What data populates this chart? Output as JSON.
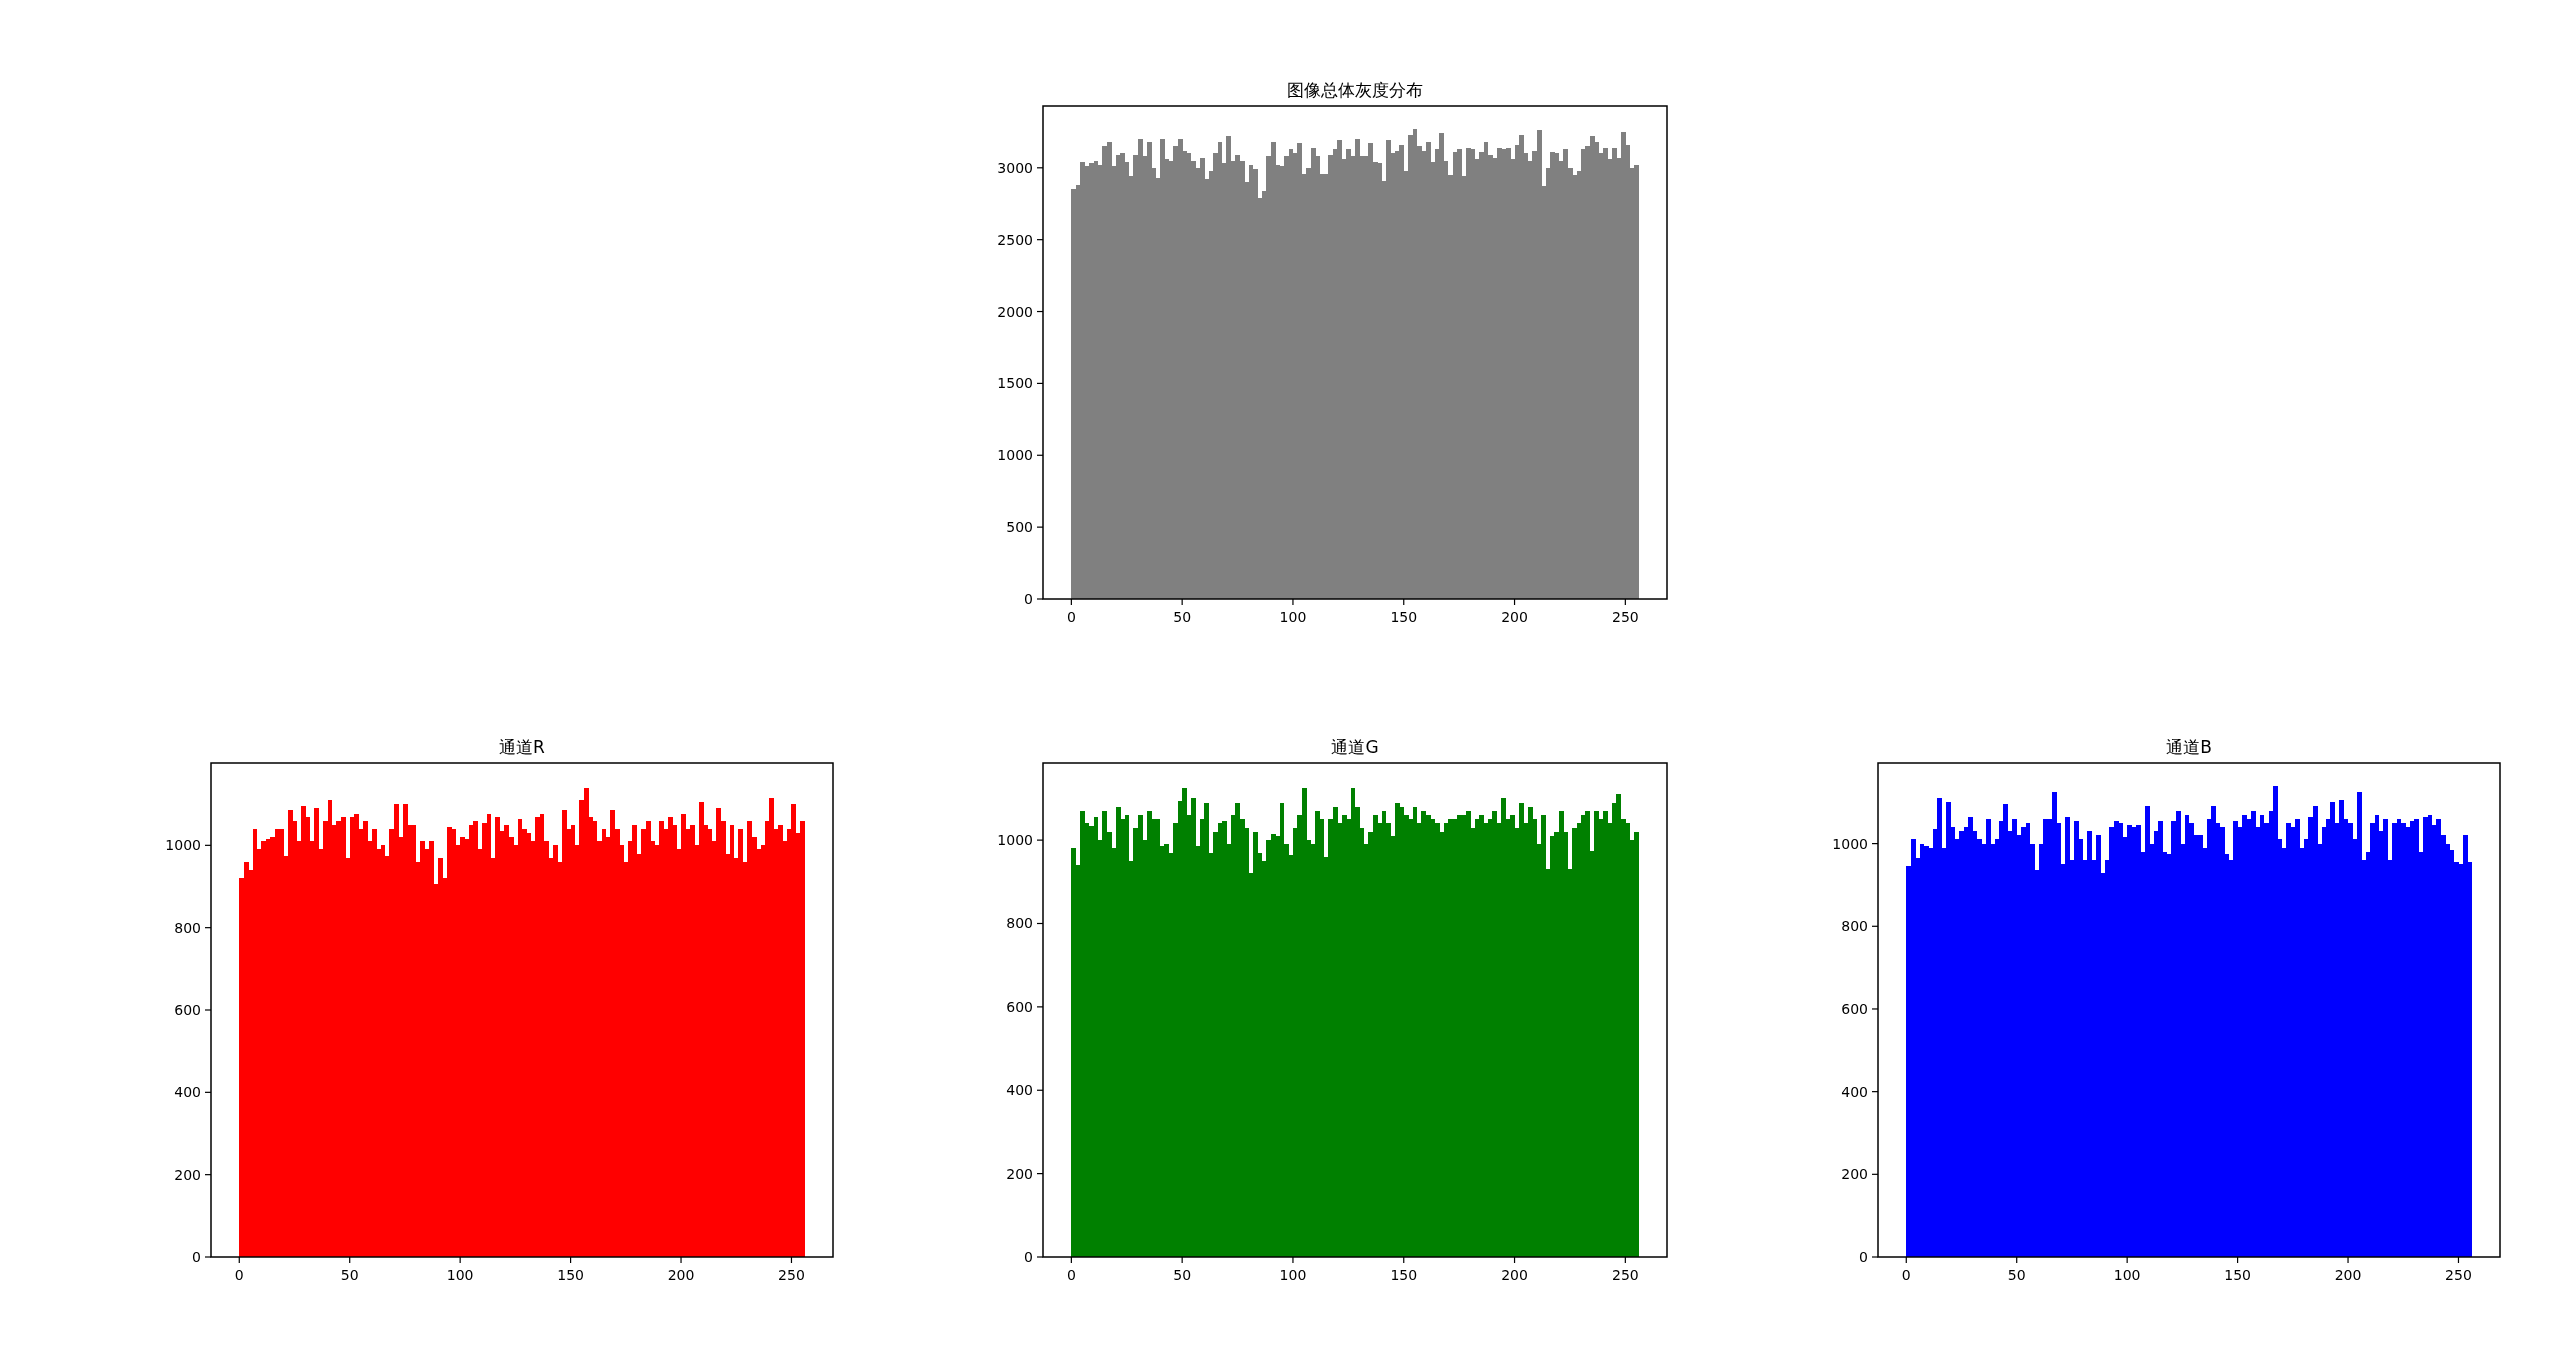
{
  "chart_data": [
    {
      "type": "histogram",
      "title": "图像总体灰度分布",
      "color": "#808080",
      "xlim": [
        -12.8,
        268.8
      ],
      "ylim": [
        0,
        3430
      ],
      "xticks": [
        0,
        50,
        100,
        150,
        200,
        250
      ],
      "yticks": [
        0,
        500,
        1000,
        1500,
        2000,
        2500,
        3000
      ],
      "bins": [
        0,
        2,
        4,
        6,
        8,
        10,
        12,
        14,
        16,
        18,
        20,
        22,
        24,
        26,
        28,
        30,
        32,
        34,
        36,
        38,
        40,
        42,
        44,
        46,
        48,
        50,
        52,
        54,
        56,
        58,
        60,
        62,
        64,
        66,
        68,
        70,
        72,
        74,
        76,
        78,
        80,
        82,
        84,
        86,
        88,
        90,
        92,
        94,
        96,
        98,
        100,
        102,
        104,
        106,
        108,
        110,
        112,
        114,
        116,
        118,
        120,
        122,
        124,
        126,
        128,
        130,
        132,
        134,
        136,
        138,
        140,
        142,
        144,
        146,
        148,
        150,
        152,
        154,
        156,
        158,
        160,
        162,
        164,
        166,
        168,
        170,
        172,
        174,
        176,
        178,
        180,
        182,
        184,
        186,
        188,
        190,
        192,
        194,
        196,
        198,
        200,
        202,
        204,
        206,
        208,
        210,
        212,
        214,
        216,
        218,
        220,
        222,
        224,
        226,
        228,
        230,
        232,
        234,
        236,
        238,
        240,
        242,
        244,
        246,
        248,
        250,
        252,
        254,
        256
      ],
      "values": [
        2850,
        2880,
        3040,
        3010,
        3030,
        3050,
        3020,
        3150,
        3180,
        3010,
        3090,
        3100,
        3040,
        2940,
        3090,
        3200,
        3080,
        3180,
        3000,
        2930,
        3200,
        3060,
        3050,
        3150,
        3200,
        3120,
        3100,
        3050,
        3000,
        3070,
        2920,
        2980,
        3100,
        3180,
        3030,
        3220,
        3050,
        3090,
        3050,
        2900,
        3020,
        2990,
        2790,
        2840,
        3080,
        3180,
        3020,
        3010,
        3080,
        3130,
        3100,
        3170,
        2960,
        3000,
        3140,
        3080,
        2960,
        2960,
        3090,
        3130,
        3190,
        3060,
        3130,
        3080,
        3200,
        3080,
        3080,
        3170,
        3040,
        3030,
        2910,
        3190,
        3100,
        3120,
        3160,
        2980,
        3230,
        3270,
        3150,
        3120,
        3180,
        3040,
        3130,
        3240,
        3050,
        2950,
        3110,
        3130,
        2940,
        3140,
        3130,
        3060,
        3110,
        3180,
        3090,
        3070,
        3140,
        3130,
        3140,
        3060,
        3160,
        3230,
        3100,
        3050,
        3120,
        3260,
        2870,
        3000,
        3110,
        3100,
        3050,
        3130,
        3000,
        2950,
        2980,
        3130,
        3150,
        3220,
        3180,
        3100,
        3140,
        3060,
        3140,
        3070,
        3250,
        3160,
        3000,
        3020
      ]
    },
    {
      "type": "histogram",
      "title": "通道R",
      "color": "#ff0000",
      "xlim": [
        -12.8,
        268.8
      ],
      "ylim": [
        0,
        1200
      ],
      "xticks": [
        0,
        50,
        100,
        150,
        200,
        250
      ],
      "yticks": [
        0,
        200,
        400,
        600,
        800,
        1000
      ],
      "bins": [
        0,
        2,
        4,
        6,
        8,
        10,
        12,
        14,
        16,
        18,
        20,
        22,
        24,
        26,
        28,
        30,
        32,
        34,
        36,
        38,
        40,
        42,
        44,
        46,
        48,
        50,
        52,
        54,
        56,
        58,
        60,
        62,
        64,
        66,
        68,
        70,
        72,
        74,
        76,
        78,
        80,
        82,
        84,
        86,
        88,
        90,
        92,
        94,
        96,
        98,
        100,
        102,
        104,
        106,
        108,
        110,
        112,
        114,
        116,
        118,
        120,
        122,
        124,
        126,
        128,
        130,
        132,
        134,
        136,
        138,
        140,
        142,
        144,
        146,
        148,
        150,
        152,
        154,
        156,
        158,
        160,
        162,
        164,
        166,
        168,
        170,
        172,
        174,
        176,
        178,
        180,
        182,
        184,
        186,
        188,
        190,
        192,
        194,
        196,
        198,
        200,
        202,
        204,
        206,
        208,
        210,
        212,
        214,
        216,
        218,
        220,
        222,
        224,
        226,
        228,
        230,
        232,
        234,
        236,
        238,
        240,
        242,
        244,
        246,
        248,
        250,
        252,
        254,
        256
      ],
      "values": [
        920,
        960,
        940,
        1040,
        990,
        1010,
        1015,
        1020,
        1040,
        1040,
        975,
        1085,
        1060,
        1010,
        1095,
        1070,
        1010,
        1090,
        990,
        1060,
        1110,
        1050,
        1060,
        1070,
        970,
        1070,
        1075,
        1040,
        1060,
        1010,
        1040,
        990,
        1000,
        975,
        1040,
        1100,
        1020,
        1100,
        1050,
        1050,
        960,
        1010,
        990,
        1010,
        905,
        970,
        920,
        1045,
        1040,
        1000,
        1020,
        1015,
        1050,
        1060,
        990,
        1055,
        1075,
        970,
        1070,
        1035,
        1050,
        1020,
        1000,
        1065,
        1040,
        1030,
        1010,
        1070,
        1075,
        1010,
        970,
        1000,
        960,
        1085,
        1040,
        1050,
        1000,
        1110,
        1140,
        1070,
        1060,
        1010,
        1040,
        1020,
        1085,
        1040,
        1000,
        960,
        1010,
        1050,
        980,
        1040,
        1060,
        1010,
        1000,
        1060,
        1040,
        1070,
        1050,
        990,
        1075,
        1040,
        1050,
        1000,
        1105,
        1050,
        1040,
        1010,
        1090,
        1060,
        980,
        1050,
        970,
        1040,
        960,
        1060,
        1020,
        990,
        1000,
        1060,
        1115,
        1040,
        1050,
        1010,
        1040,
        1100,
        1030,
        1060
      ]
    },
    {
      "type": "histogram",
      "title": "通道G",
      "color": "#008000",
      "xlim": [
        -12.8,
        268.8
      ],
      "ylim": [
        0,
        1185
      ],
      "xticks": [
        0,
        50,
        100,
        150,
        200,
        250
      ],
      "yticks": [
        0,
        200,
        400,
        600,
        800,
        1000
      ],
      "bins": [
        0,
        2,
        4,
        6,
        8,
        10,
        12,
        14,
        16,
        18,
        20,
        22,
        24,
        26,
        28,
        30,
        32,
        34,
        36,
        38,
        40,
        42,
        44,
        46,
        48,
        50,
        52,
        54,
        56,
        58,
        60,
        62,
        64,
        66,
        68,
        70,
        72,
        74,
        76,
        78,
        80,
        82,
        84,
        86,
        88,
        90,
        92,
        94,
        96,
        98,
        100,
        102,
        104,
        106,
        108,
        110,
        112,
        114,
        116,
        118,
        120,
        122,
        124,
        126,
        128,
        130,
        132,
        134,
        136,
        138,
        140,
        142,
        144,
        146,
        148,
        150,
        152,
        154,
        156,
        158,
        160,
        162,
        164,
        166,
        168,
        170,
        172,
        174,
        176,
        178,
        180,
        182,
        184,
        186,
        188,
        190,
        192,
        194,
        196,
        198,
        200,
        202,
        204,
        206,
        208,
        210,
        212,
        214,
        216,
        218,
        220,
        222,
        224,
        226,
        228,
        230,
        232,
        234,
        236,
        238,
        240,
        242,
        244,
        246,
        248,
        250,
        252,
        254,
        256
      ],
      "values": [
        980,
        940,
        1070,
        1040,
        1035,
        1055,
        1000,
        1070,
        1020,
        980,
        1080,
        1050,
        1060,
        950,
        1030,
        1060,
        1000,
        1070,
        1050,
        1050,
        985,
        990,
        970,
        1040,
        1095,
        1125,
        1060,
        1100,
        985,
        1050,
        1090,
        970,
        1020,
        1040,
        1045,
        990,
        1060,
        1090,
        1050,
        1030,
        920,
        1020,
        970,
        950,
        1000,
        1015,
        1010,
        1090,
        990,
        965,
        1030,
        1060,
        1125,
        1000,
        990,
        1070,
        1050,
        960,
        1050,
        1080,
        1040,
        1060,
        1050,
        1125,
        1080,
        1030,
        990,
        1020,
        1060,
        1040,
        1070,
        1040,
        1010,
        1090,
        1080,
        1060,
        1050,
        1080,
        1040,
        1070,
        1060,
        1050,
        1040,
        1020,
        1040,
        1050,
        1050,
        1060,
        1060,
        1070,
        1030,
        1050,
        1060,
        1040,
        1050,
        1070,
        1040,
        1100,
        1050,
        1060,
        1030,
        1090,
        1040,
        1080,
        1050,
        990,
        1060,
        930,
        1010,
        1020,
        1070,
        1020,
        930,
        1030,
        1040,
        1060,
        1070,
        975,
        1070,
        1050,
        1070,
        1040,
        1090,
        1110,
        1050,
        1040,
        1000,
        1020
      ]
    },
    {
      "type": "histogram",
      "title": "通道B",
      "color": "#0000ff",
      "xlim": [
        -12.8,
        268.8
      ],
      "ylim": [
        0,
        1195
      ],
      "xticks": [
        0,
        50,
        100,
        150,
        200,
        250
      ],
      "yticks": [
        0,
        200,
        400,
        600,
        800,
        1000
      ],
      "bins": [
        0,
        2,
        4,
        6,
        8,
        10,
        12,
        14,
        16,
        18,
        20,
        22,
        24,
        26,
        28,
        30,
        32,
        34,
        36,
        38,
        40,
        42,
        44,
        46,
        48,
        50,
        52,
        54,
        56,
        58,
        60,
        62,
        64,
        66,
        68,
        70,
        72,
        74,
        76,
        78,
        80,
        82,
        84,
        86,
        88,
        90,
        92,
        94,
        96,
        98,
        100,
        102,
        104,
        106,
        108,
        110,
        112,
        114,
        116,
        118,
        120,
        122,
        124,
        126,
        128,
        130,
        132,
        134,
        136,
        138,
        140,
        142,
        144,
        146,
        148,
        150,
        152,
        154,
        156,
        158,
        160,
        162,
        164,
        166,
        168,
        170,
        172,
        174,
        176,
        178,
        180,
        182,
        184,
        186,
        188,
        190,
        192,
        194,
        196,
        198,
        200,
        202,
        204,
        206,
        208,
        210,
        212,
        214,
        216,
        218,
        220,
        222,
        224,
        226,
        228,
        230,
        232,
        234,
        236,
        238,
        240,
        242,
        244,
        246,
        248,
        250,
        252,
        254,
        256
      ],
      "values": [
        945,
        1010,
        965,
        1000,
        995,
        990,
        1035,
        1110,
        990,
        1100,
        1040,
        1010,
        1030,
        1040,
        1065,
        1030,
        1010,
        1000,
        1060,
        1000,
        1010,
        1055,
        1095,
        1030,
        1060,
        1020,
        1040,
        1050,
        1000,
        935,
        1000,
        1060,
        1060,
        1125,
        1050,
        950,
        1065,
        960,
        1055,
        1010,
        960,
        1030,
        960,
        1020,
        930,
        960,
        1040,
        1055,
        1050,
        1015,
        1045,
        1040,
        1045,
        980,
        1090,
        1000,
        1030,
        1055,
        980,
        975,
        1055,
        1080,
        1000,
        1070,
        1050,
        1020,
        1020,
        990,
        1060,
        1090,
        1050,
        1040,
        975,
        960,
        1055,
        1040,
        1070,
        1060,
        1080,
        1040,
        1070,
        1050,
        1080,
        1140,
        1010,
        990,
        1050,
        1040,
        1060,
        990,
        1010,
        1065,
        1090,
        1000,
        1040,
        1060,
        1100,
        1050,
        1105,
        1060,
        1050,
        1010,
        1125,
        960,
        980,
        1050,
        1070,
        1030,
        1060,
        960,
        1050,
        1060,
        1050,
        1040,
        1055,
        1060,
        980,
        1065,
        1070,
        1045,
        1060,
        1020,
        1000,
        985,
        955,
        950,
        1020,
        955
      ]
    }
  ]
}
